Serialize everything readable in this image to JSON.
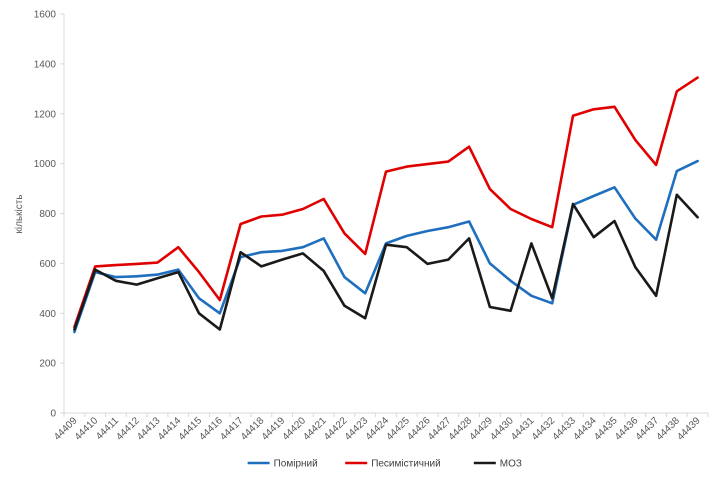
{
  "chart_data": {
    "type": "line",
    "title": "",
    "xlabel": "",
    "ylabel": "кількість",
    "ylim": [
      0,
      1600
    ],
    "yticks": [
      0,
      200,
      400,
      600,
      800,
      1000,
      1200,
      1400,
      1600
    ],
    "grid": false,
    "legend": "bottom",
    "categories": [
      "44409",
      "44410",
      "44411",
      "44412",
      "44413",
      "44414",
      "44415",
      "44416",
      "44417",
      "44418",
      "44419",
      "44420",
      "44421",
      "44422",
      "44423",
      "44424",
      "44425",
      "44426",
      "44427",
      "44428",
      "44429",
      "44430",
      "44431",
      "44432",
      "44433",
      "44434",
      "44435",
      "44436",
      "44437",
      "44438",
      "44439"
    ],
    "series": [
      {
        "name": "Помірний",
        "color": "#1f6fbf",
        "values": [
          325,
          565,
          545,
          548,
          555,
          575,
          460,
          400,
          625,
          645,
          650,
          665,
          700,
          545,
          480,
          680,
          710,
          730,
          745,
          768,
          600,
          530,
          470,
          440,
          835,
          870,
          905,
          780,
          695,
          970,
          1010
        ]
      },
      {
        "name": "Песимістичний",
        "color": "#e00000",
        "values": [
          345,
          588,
          593,
          598,
          603,
          665,
          565,
          453,
          758,
          788,
          795,
          818,
          858,
          720,
          638,
          968,
          988,
          998,
          1008,
          1068,
          898,
          818,
          778,
          745,
          1192,
          1218,
          1228,
          1095,
          995,
          1290,
          1345
        ]
      },
      {
        "name": "МОЗ",
        "color": "#1a1a1a",
        "values": [
          335,
          575,
          530,
          515,
          540,
          565,
          400,
          335,
          645,
          588,
          615,
          640,
          570,
          430,
          380,
          675,
          665,
          598,
          615,
          700,
          425,
          410,
          680,
          460,
          838,
          705,
          770,
          585,
          470,
          875,
          785
        ]
      }
    ]
  }
}
